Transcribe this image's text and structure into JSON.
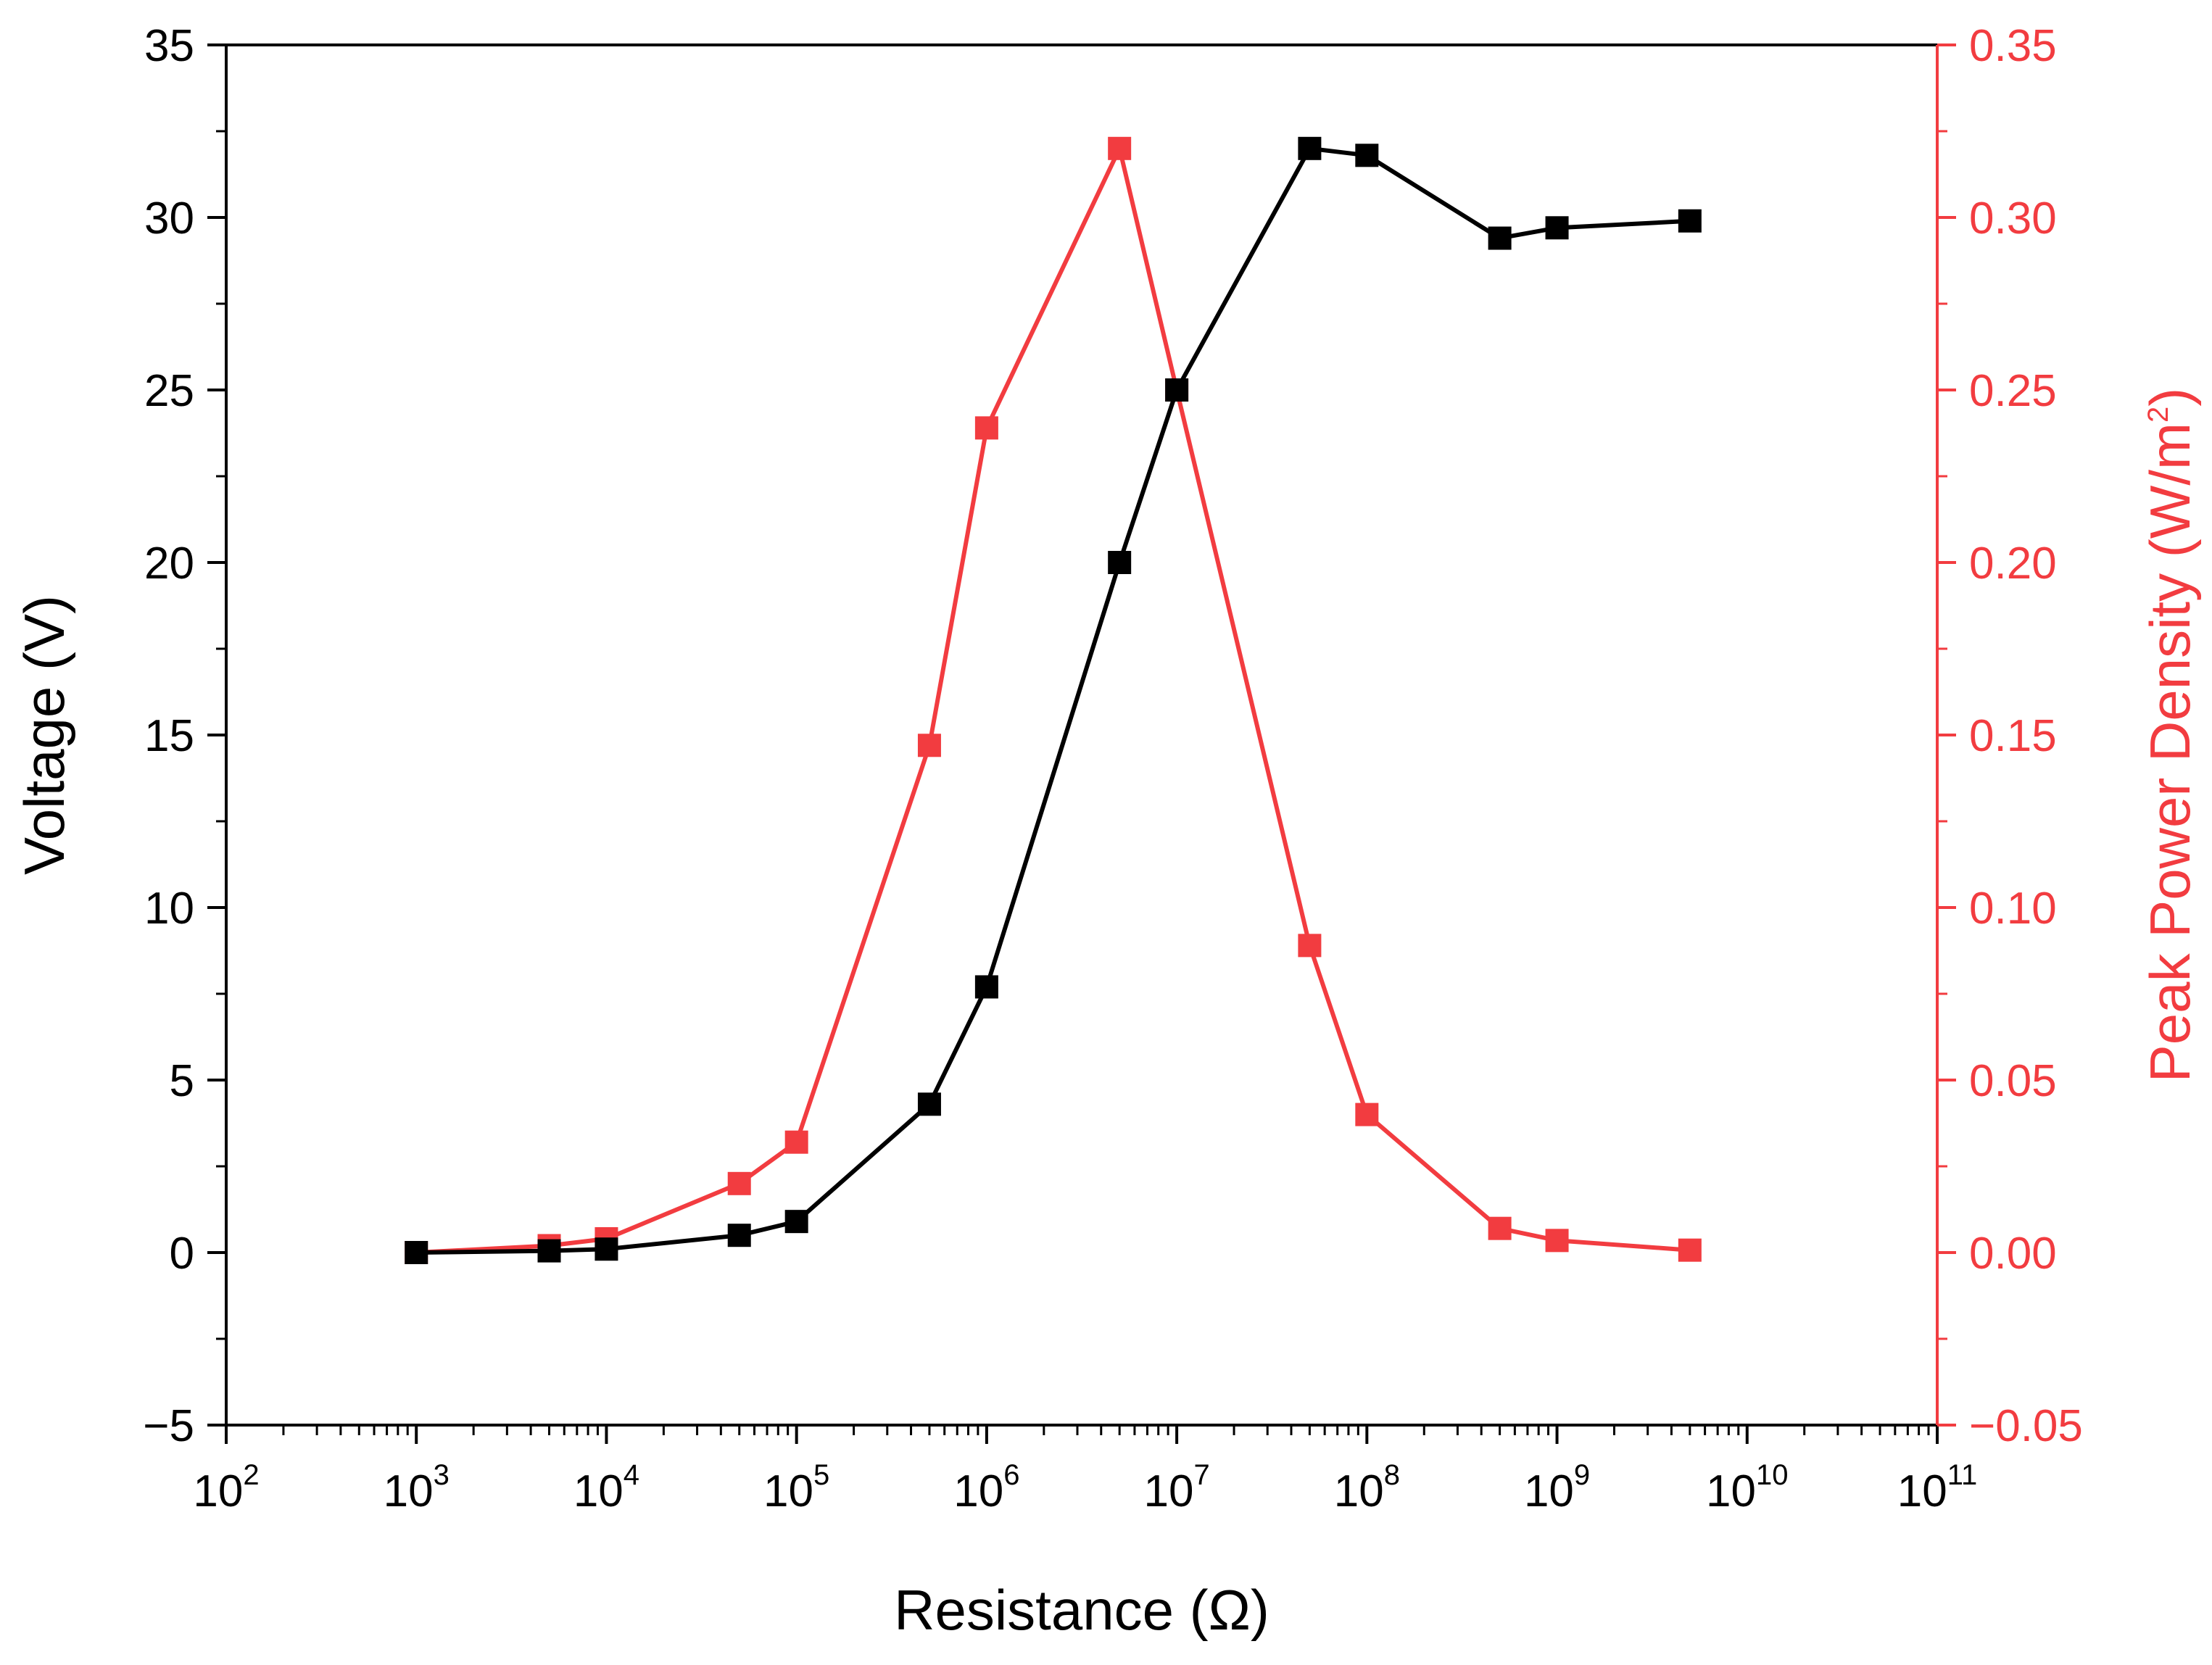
{
  "chart_data": {
    "type": "line",
    "title": "",
    "x_axis": {
      "label": "Resistance (Ω)",
      "scale": "log",
      "range": [
        100,
        100000000000
      ],
      "ticks": [
        {
          "value": 100,
          "base": "10",
          "exp": "2"
        },
        {
          "value": 1000,
          "base": "10",
          "exp": "3"
        },
        {
          "value": 10000,
          "base": "10",
          "exp": "4"
        },
        {
          "value": 100000,
          "base": "10",
          "exp": "5"
        },
        {
          "value": 1000000,
          "base": "10",
          "exp": "6"
        },
        {
          "value": 10000000,
          "base": "10",
          "exp": "7"
        },
        {
          "value": 100000000,
          "base": "10",
          "exp": "8"
        },
        {
          "value": 1000000000,
          "base": "10",
          "exp": "9"
        },
        {
          "value": 10000000000,
          "base": "10",
          "exp": "10"
        },
        {
          "value": 100000000000,
          "base": "10",
          "exp": "11"
        }
      ]
    },
    "y_left": {
      "label": "Voltage (V)",
      "range": [
        -5,
        35
      ],
      "ticks": [
        {
          "value": -5,
          "label": "−5"
        },
        {
          "value": 0,
          "label": "0"
        },
        {
          "value": 5,
          "label": "5"
        },
        {
          "value": 10,
          "label": "10"
        },
        {
          "value": 15,
          "label": "15"
        },
        {
          "value": 20,
          "label": "20"
        },
        {
          "value": 25,
          "label": "25"
        },
        {
          "value": 30,
          "label": "30"
        },
        {
          "value": 35,
          "label": "35"
        }
      ]
    },
    "y_right": {
      "label_main": "Peak Power Density (W/m",
      "label_sup": "2",
      "label_end": ")",
      "range": [
        -0.05,
        0.35
      ],
      "ticks": [
        {
          "value": -0.05,
          "label": "−0.05"
        },
        {
          "value": 0.0,
          "label": "0.00"
        },
        {
          "value": 0.05,
          "label": "0.05"
        },
        {
          "value": 0.1,
          "label": "0.10"
        },
        {
          "value": 0.15,
          "label": "0.15"
        },
        {
          "value": 0.2,
          "label": "0.20"
        },
        {
          "value": 0.25,
          "label": "0.25"
        },
        {
          "value": 0.3,
          "label": "0.30"
        },
        {
          "value": 0.35,
          "label": "0.35"
        }
      ]
    },
    "series": [
      {
        "name": "Voltage",
        "axis": "left",
        "color": "#000000",
        "x": [
          1000,
          5000,
          10000,
          50000,
          100000,
          500000,
          1000000,
          5000000,
          10000000,
          50000000,
          100000000,
          500000000,
          1000000000,
          5000000000
        ],
        "values": [
          0.0,
          0.05,
          0.1,
          0.5,
          0.9,
          4.3,
          7.7,
          20.0,
          25.0,
          32.0,
          31.8,
          29.4,
          29.7,
          29.9
        ]
      },
      {
        "name": "Peak Power Density",
        "axis": "right",
        "color": "#f23c40",
        "x": [
          1000,
          5000,
          10000,
          50000,
          100000,
          500000,
          1000000,
          5000000,
          10000000,
          50000000,
          100000000,
          500000000,
          1000000000,
          5000000000
        ],
        "values": [
          0.0,
          0.002,
          0.004,
          0.02,
          0.032,
          0.147,
          0.239,
          0.32,
          0.25,
          0.089,
          0.04,
          0.007,
          0.0035,
          0.0007
        ]
      }
    ],
    "grid": false,
    "legend": "none"
  }
}
